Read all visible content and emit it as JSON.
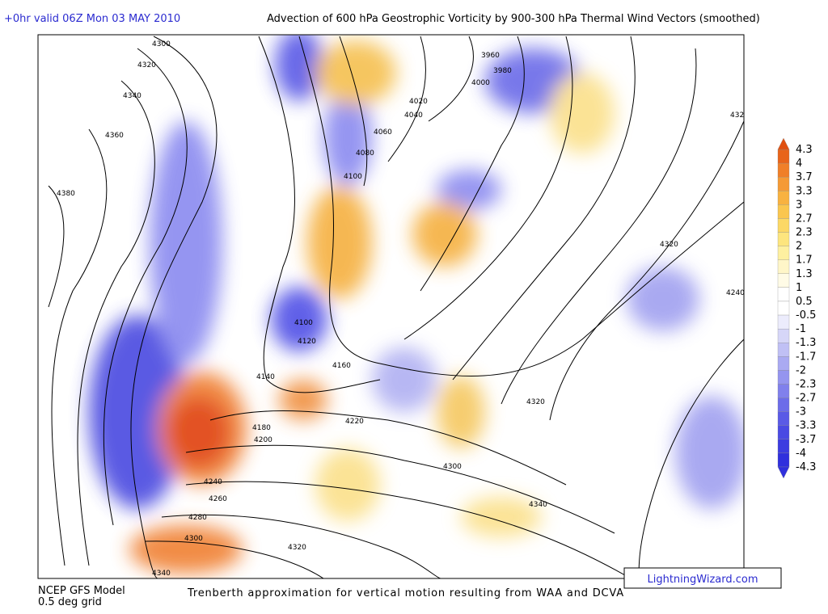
{
  "header": {
    "run": "+0hr valid 06Z Mon 03 MAY 2010",
    "title": "Advection of 600 hPa Geostrophic Vorticity by 900-300 hPa Thermal Wind Vectors (smoothed)"
  },
  "contour_labels": [
    "4300",
    "4320",
    "4340",
    "4360",
    "4380",
    "3960",
    "3980",
    "4000",
    "4020",
    "4040",
    "4060",
    "4080",
    "4100",
    "4320",
    "4240",
    "4100",
    "4120",
    "4160",
    "4140",
    "4320",
    "4180",
    "4200",
    "4220",
    "4300",
    "4240",
    "4260",
    "4280",
    "4300",
    "4320",
    "4340",
    "4340",
    "432"
  ],
  "colorbar": {
    "levels": [
      4.3,
      4,
      3.7,
      3.3,
      3,
      2.7,
      2.3,
      2,
      1.7,
      1.3,
      1,
      0.5,
      -0.5,
      -1,
      -1.3,
      -1.7,
      -2,
      -2.3,
      -2.7,
      -3,
      -3.3,
      -3.7,
      -4,
      -4.3
    ]
  },
  "footer": {
    "model": "NCEP GFS Model",
    "grid": "0.5 deg grid",
    "note": "Trenberth approximation for vertical motion resulting from WAA and DCVA",
    "site": "LightningWizard.com"
  }
}
